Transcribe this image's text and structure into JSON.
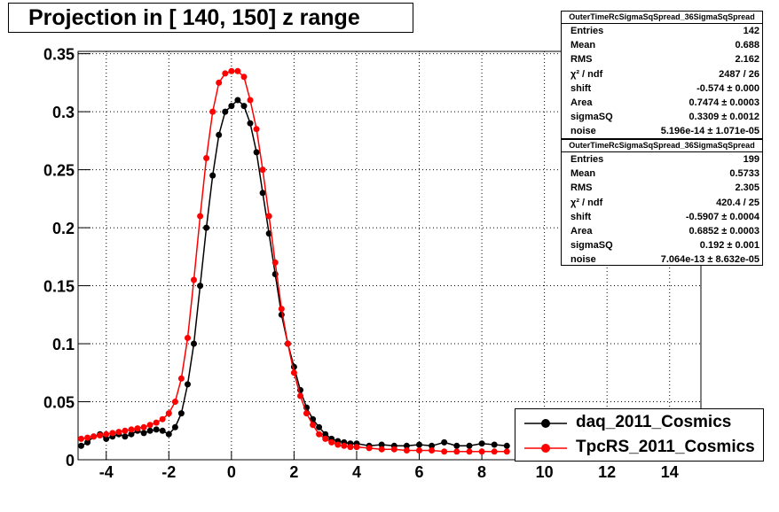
{
  "title": "Projection in [ 140, 150] z range",
  "colors": {
    "daq": "#000000",
    "tpcrs": "#ff0000",
    "grid": "#000000"
  },
  "stats": [
    {
      "name": "OuterTimeRcSigmaSqSpread_36SigmaSqSpread",
      "rows": [
        {
          "k": "Entries",
          "v": "142"
        },
        {
          "k": "Mean",
          "v": "0.688"
        },
        {
          "k": "RMS",
          "v": "2.162"
        },
        {
          "k": "χ² / ndf",
          "v": "2487 / 26"
        },
        {
          "k": "shift",
          "v": "-0.574 ± 0.000"
        },
        {
          "k": "Area",
          "v": "0.7474 ± 0.0003"
        },
        {
          "k": "sigmaSQ",
          "v": "0.3309 ± 0.0012"
        },
        {
          "k": "noise",
          "v": "5.196e-14 ± 1.071e-05"
        }
      ]
    },
    {
      "name": "OuterTimeRcSigmaSqSpread_36SigmaSqSpread",
      "rows": [
        {
          "k": "Entries",
          "v": "199"
        },
        {
          "k": "Mean",
          "v": "0.5733"
        },
        {
          "k": "RMS",
          "v": "2.305"
        },
        {
          "k": "χ² / ndf",
          "v": "420.4 / 25"
        },
        {
          "k": "shift",
          "v": "-0.5907 ± 0.0004"
        },
        {
          "k": "Area",
          "v": "0.6852 ± 0.0003"
        },
        {
          "k": "sigmaSQ",
          "v": "0.192 ± 0.001"
        },
        {
          "k": "noise",
          "v": "7.064e-13 ± 8.632e-05"
        }
      ]
    }
  ],
  "legend": [
    {
      "label": "daq_2011_Cosmics",
      "color": "#000000"
    },
    {
      "label": "TpcRS_2011_Cosmics",
      "color": "#ff0000"
    }
  ],
  "chart_data": {
    "type": "scatter",
    "title": "Projection in [ 140, 150] z range",
    "xlim": [
      -4.9,
      15.0
    ],
    "ylim": [
      0,
      0.352
    ],
    "x_ticks": [
      "-4",
      "-2",
      "0",
      "2",
      "4",
      "6",
      "8",
      "10",
      "12",
      "14"
    ],
    "y_ticks": [
      "0",
      "0.05",
      "0.1",
      "0.15",
      "0.2",
      "0.25",
      "0.3",
      "0.35"
    ],
    "grid": true,
    "legend_position": "bottom-right",
    "series": [
      {
        "name": "daq_2011_Cosmics",
        "color": "#000000",
        "x": [
          -4.8,
          -4.6,
          -4.4,
          -4.2,
          -4.0,
          -3.8,
          -3.6,
          -3.4,
          -3.2,
          -3.0,
          -2.8,
          -2.6,
          -2.4,
          -2.2,
          -2.0,
          -1.8,
          -1.6,
          -1.4,
          -1.2,
          -1.0,
          -0.8,
          -0.6,
          -0.4,
          -0.2,
          0.0,
          0.2,
          0.4,
          0.6,
          0.8,
          1.0,
          1.2,
          1.4,
          1.6,
          1.8,
          2.0,
          2.2,
          2.4,
          2.6,
          2.8,
          3.0,
          3.2,
          3.4,
          3.6,
          3.8,
          4.0,
          4.4,
          4.8,
          5.2,
          5.6,
          6.0,
          6.4,
          6.8,
          7.2,
          7.6,
          8.0,
          8.4,
          8.8
        ],
        "y": [
          0.012,
          0.015,
          0.02,
          0.022,
          0.018,
          0.02,
          0.022,
          0.02,
          0.022,
          0.025,
          0.023,
          0.025,
          0.026,
          0.025,
          0.022,
          0.028,
          0.04,
          0.065,
          0.1,
          0.15,
          0.2,
          0.245,
          0.28,
          0.3,
          0.305,
          0.31,
          0.305,
          0.29,
          0.265,
          0.23,
          0.195,
          0.16,
          0.125,
          0.1,
          0.08,
          0.06,
          0.045,
          0.035,
          0.028,
          0.022,
          0.018,
          0.016,
          0.015,
          0.014,
          0.014,
          0.012,
          0.013,
          0.012,
          0.012,
          0.013,
          0.012,
          0.015,
          0.012,
          0.012,
          0.014,
          0.013,
          0.012
        ]
      },
      {
        "name": "TpcRS_2011_Cosmics",
        "color": "#ff0000",
        "x": [
          -4.8,
          -4.6,
          -4.4,
          -4.2,
          -4.0,
          -3.8,
          -3.6,
          -3.4,
          -3.2,
          -3.0,
          -2.8,
          -2.6,
          -2.4,
          -2.2,
          -2.0,
          -1.8,
          -1.6,
          -1.4,
          -1.2,
          -1.0,
          -0.8,
          -0.6,
          -0.4,
          -0.2,
          0.0,
          0.2,
          0.4,
          0.6,
          0.8,
          1.0,
          1.2,
          1.4,
          1.6,
          1.8,
          2.0,
          2.2,
          2.4,
          2.6,
          2.8,
          3.0,
          3.2,
          3.4,
          3.6,
          3.8,
          4.0,
          4.4,
          4.8,
          5.2,
          5.6,
          6.0,
          6.4,
          6.8,
          7.2,
          7.6,
          8.0,
          8.4,
          8.8
        ],
        "y": [
          0.018,
          0.019,
          0.02,
          0.021,
          0.022,
          0.023,
          0.024,
          0.025,
          0.026,
          0.027,
          0.028,
          0.03,
          0.032,
          0.035,
          0.04,
          0.05,
          0.07,
          0.105,
          0.155,
          0.21,
          0.26,
          0.3,
          0.325,
          0.333,
          0.335,
          0.335,
          0.33,
          0.31,
          0.285,
          0.25,
          0.21,
          0.17,
          0.13,
          0.1,
          0.075,
          0.055,
          0.04,
          0.03,
          0.022,
          0.018,
          0.015,
          0.013,
          0.012,
          0.011,
          0.011,
          0.01,
          0.009,
          0.009,
          0.008,
          0.008,
          0.008,
          0.007,
          0.007,
          0.007,
          0.007,
          0.007,
          0.007
        ]
      }
    ]
  }
}
